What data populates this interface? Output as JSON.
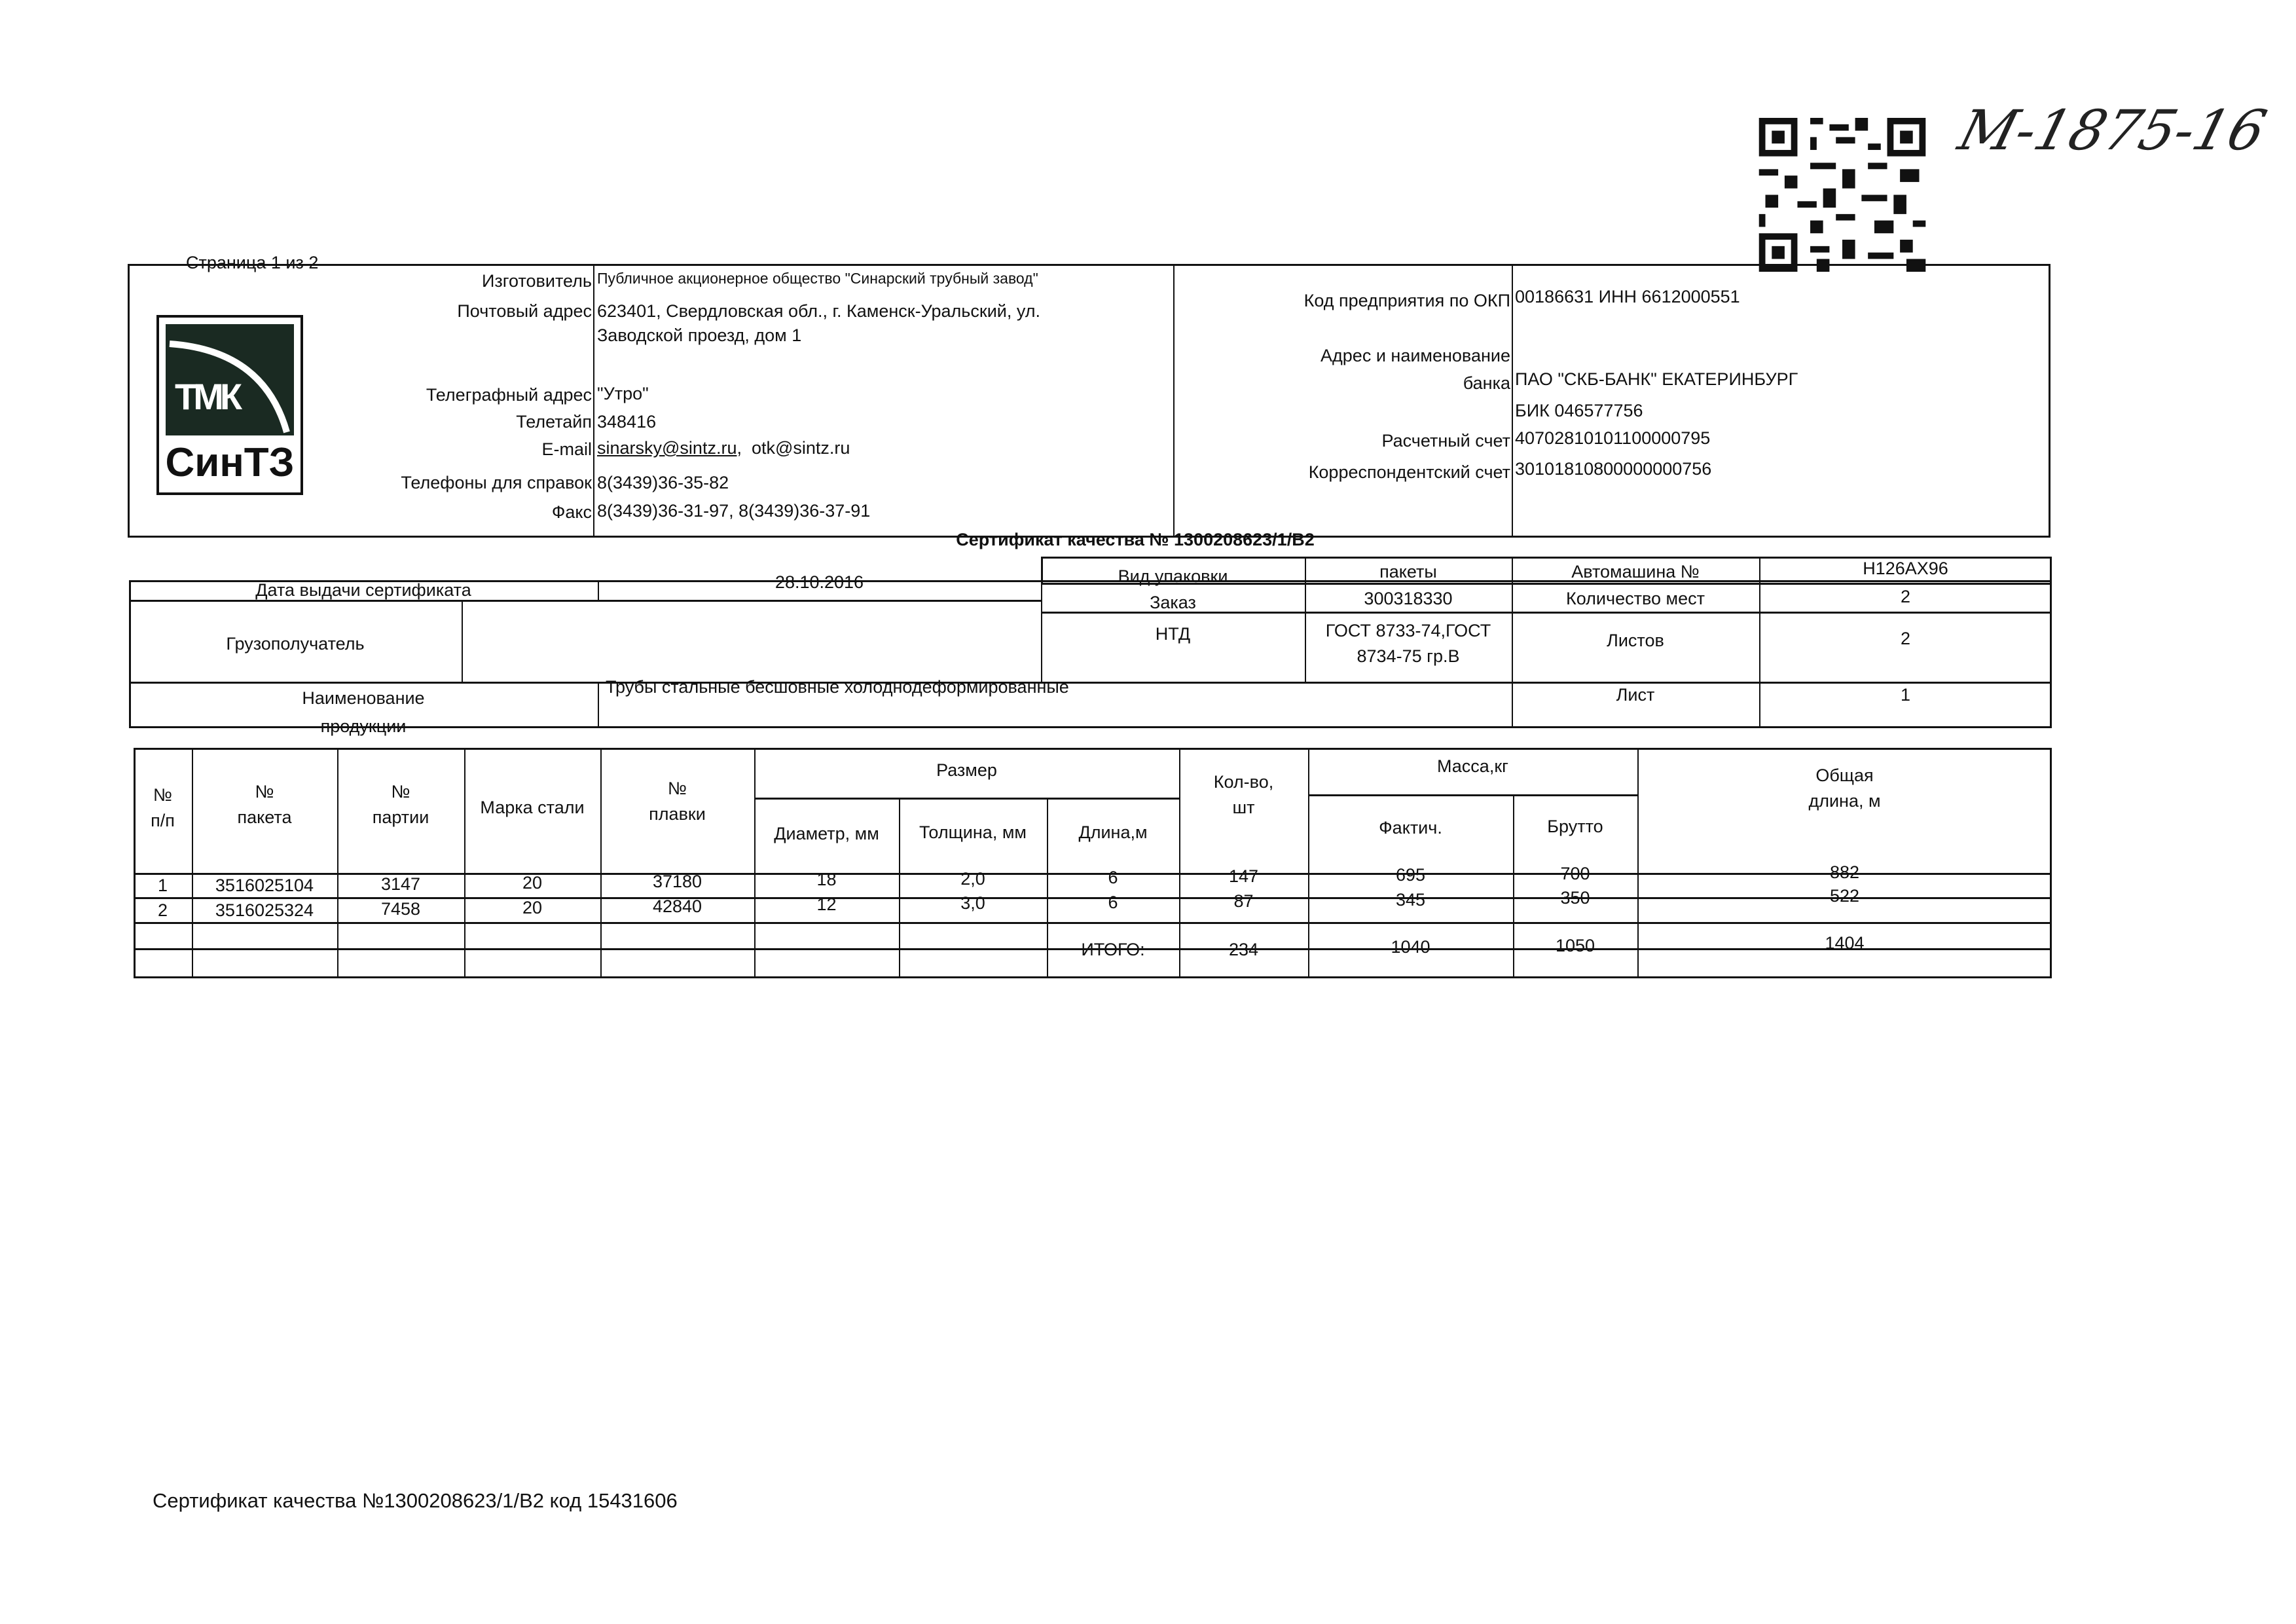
{
  "page_indicator": "Страница 1 из 2",
  "handwritten_note": "М-1875-16",
  "logo": {
    "top": "ТМК",
    "bottom": "СинТЗ"
  },
  "manufacturer": {
    "rows": [
      {
        "label": "Изготовитель",
        "value": "Публичное акционерное общество \"Синарский трубный завод\""
      },
      {
        "label": "Почтовый адрес",
        "value": "623401, Свердловская обл., г. Каменск-Уральский, ул."
      },
      {
        "label": "",
        "value": "Заводской проезд, дом 1"
      },
      {
        "label": "Телеграфный адрес",
        "value": "\"Утро\""
      },
      {
        "label": "Телетайп",
        "value": "348416"
      },
      {
        "label": "E-mail",
        "value": "sinarsky@sintz.ru",
        "value2": "otk@sintz.ru"
      },
      {
        "label": "Телефоны для справок",
        "value": "8(3439)36-35-82"
      },
      {
        "label": "Факс",
        "value": "8(3439)36-31-97, 8(3439)36-37-91"
      }
    ]
  },
  "bank": {
    "rows": [
      {
        "label": "Код предприятия по ОКП",
        "value": "00186631 ИНН 6612000551"
      },
      {
        "label": "Адрес и наименование",
        "value": ""
      },
      {
        "label": "банка",
        "value": "ПАО \"СКБ-БАНК\" ЕКАТЕРИНБУРГ"
      },
      {
        "label": "",
        "value": "БИК 046577756"
      },
      {
        "label": "Расчетный счет",
        "value": "40702810101100000795"
      },
      {
        "label": "Корреспондентский счет",
        "value": "30101810800000000756"
      }
    ]
  },
  "certificate_title": "Сертификат качества № 1300208623/1/В2",
  "info": {
    "issue_date_label": "Дата выдачи сертификата",
    "issue_date": "28.10.2016",
    "packaging_label": "Вид упаковки",
    "packaging": "пакеты",
    "vehicle_label": "Автомашина №",
    "vehicle": "Н126АХ96",
    "order_label": "Заказ",
    "order": "300318330",
    "places_label": "Количество мест",
    "places": "2",
    "consignee_label": "Грузополучатель",
    "consignee": "",
    "ntd_label": "НТД",
    "ntd_line1": "ГОСТ 8733-74,ГОСТ",
    "ntd_line2": "8734-75 гр.В",
    "sheets_label": "Листов",
    "sheets": "2",
    "product_label_1": "Наименование",
    "product_label_2": "продукции",
    "product": "Трубы стальные бесшовные холоднодеформированные",
    "sheet_label": "Лист",
    "sheet": "1"
  },
  "table": {
    "headers": {
      "num": [
        "№",
        "п/п"
      ],
      "package": [
        "№",
        "пакета"
      ],
      "batch": [
        "№",
        "партии"
      ],
      "grade": "Марка стали",
      "heat": [
        "№",
        "плавки"
      ],
      "size": "Размер",
      "diameter": "Диаметр, мм",
      "thickness": "Толщина, мм",
      "length": "Длина,м",
      "qty": [
        "Кол-во,",
        "шт"
      ],
      "mass": "Масса,кг",
      "actual": "Фактич.",
      "gross": "Брутто",
      "total_length": [
        "Общая",
        "длина, м"
      ]
    },
    "rows": [
      {
        "num": "1",
        "package": "3516025104",
        "batch": "3147",
        "grade": "20",
        "heat": "37180",
        "diameter": "18",
        "thickness": "2,0",
        "length": "6",
        "qty": "147",
        "actual": "695",
        "gross": "700",
        "total_length": "882"
      },
      {
        "num": "2",
        "package": "3516025324",
        "batch": "7458",
        "grade": "20",
        "heat": "42840",
        "diameter": "12",
        "thickness": "3,0",
        "length": "6",
        "qty": "87",
        "actual": "345",
        "gross": "350",
        "total_length": "522"
      }
    ],
    "totals": {
      "label": "ИТОГО:",
      "qty": "234",
      "actual": "1040",
      "gross": "1050",
      "total_length": "1404"
    }
  },
  "footer": "Сертификат качества №1300208623/1/В2 код 15431606"
}
